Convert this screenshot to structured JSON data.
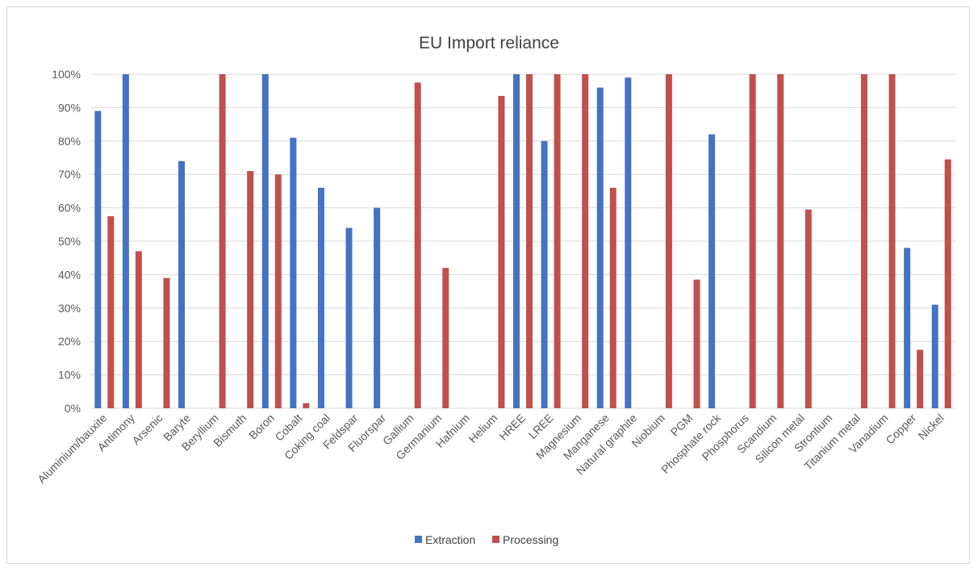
{
  "chart_data": {
    "type": "bar",
    "title": "EU Import reliance",
    "xlabel": "",
    "ylabel": "",
    "ylim": [
      0,
      1
    ],
    "yticks": [
      "0%",
      "10%",
      "20%",
      "30%",
      "40%",
      "50%",
      "60%",
      "70%",
      "80%",
      "90%",
      "100%"
    ],
    "grid": true,
    "legend_position": "bottom",
    "categories": [
      "Aluminium/bauxite",
      "Antimony",
      "Arsenic",
      "Baryte",
      "Beryllium",
      "Bismuth",
      "Boron",
      "Cobalt",
      "Coking coal",
      "Feldspar",
      "Fluorspar",
      "Gallium",
      "Germanium",
      "Hafnium",
      "Helium",
      "HREE",
      "LREE",
      "Magnesium",
      "Manganese",
      "Natural graphite",
      "Niobium",
      "PGM",
      "Phosphate rock",
      "Phosphorus",
      "Scandium",
      "Silicon metal",
      "Strontium",
      "Titanium metal",
      "Vanadium",
      "Copper",
      "Nickel"
    ],
    "series": [
      {
        "name": "Extraction",
        "color": "#4472c4",
        "values": [
          0.89,
          1.0,
          0,
          0.74,
          0,
          0,
          1.0,
          0.81,
          0.66,
          0.54,
          0.6,
          0,
          0,
          0,
          0,
          1.0,
          0.8,
          0,
          0.96,
          0.99,
          0,
          0,
          0.82,
          0,
          0,
          0,
          0,
          0,
          0,
          0.48,
          0.31
        ]
      },
      {
        "name": "Processing",
        "color": "#c0504d",
        "values": [
          0.575,
          0.47,
          0.39,
          0,
          1.0,
          0.71,
          0.7,
          0.015,
          0,
          0,
          0,
          0.975,
          0.42,
          0,
          0.935,
          1.0,
          1.0,
          1.0,
          0.66,
          0,
          1.0,
          0.385,
          0,
          1.0,
          1.0,
          0.595,
          0,
          1.0,
          1.0,
          0.175,
          0.745
        ]
      }
    ]
  }
}
